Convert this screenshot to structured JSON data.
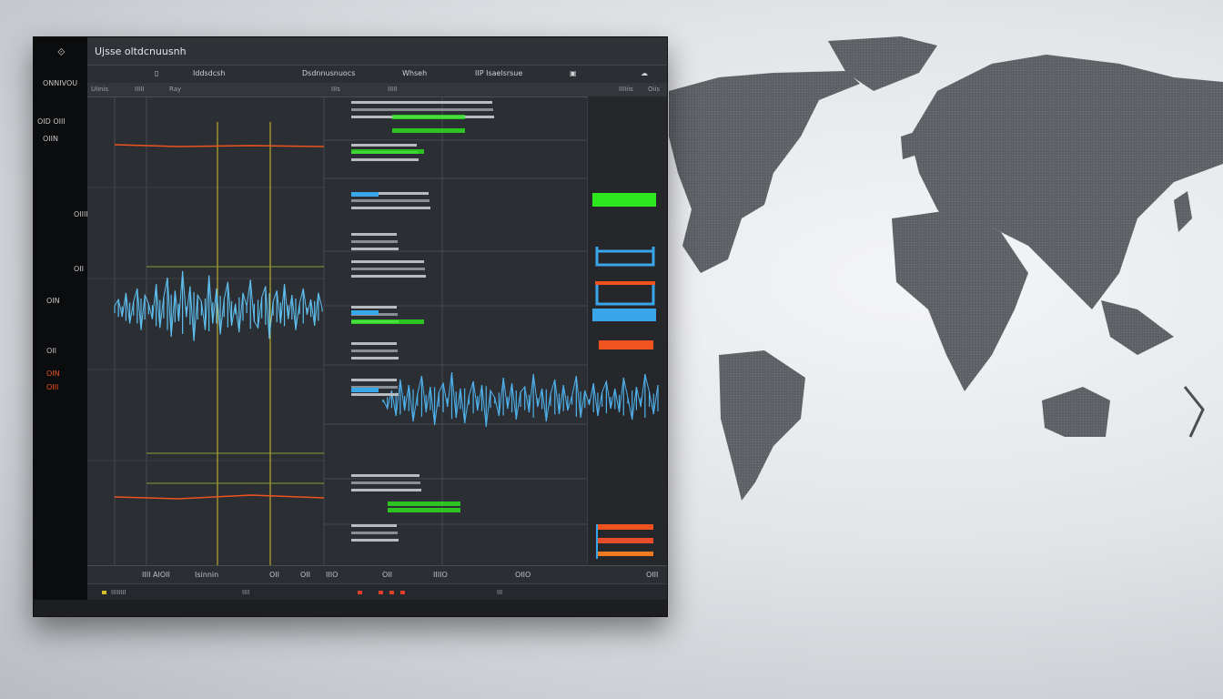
{
  "window": {
    "title": "Ujsse oltdcnuusnh"
  },
  "sidebar": {
    "items": [
      "OID  OIII",
      "ONNIVOU",
      "OU  OIIN",
      "OIIN",
      "OIIII",
      "OII",
      "OIN",
      "OII",
      "OIN",
      "OIII"
    ]
  },
  "toolbar": {
    "items": [
      "Iddsdcsh",
      "Dsdnnusnuocs",
      "Whseh",
      "IIP Isaelsrsue"
    ]
  },
  "subheader": {
    "items": [
      "Uiinis",
      "IIIII",
      "Ray",
      "IIIs",
      "IIIII",
      "IIIIiis",
      "Oiis"
    ]
  },
  "bottom_bar": {
    "items": [
      "IIII  AIOII",
      "Isinnin",
      "OII",
      "OII",
      "IIIO",
      "OII",
      "IIIIO",
      "OIIO",
      "OIII"
    ]
  },
  "status_bar": {
    "items": [
      "IIIIIIII",
      "IIII",
      "III"
    ]
  },
  "colors": {
    "accent_blue": "#3aa6ea",
    "green": "#2ee81f",
    "orange": "#f0531f",
    "yellow": "#d6c12c",
    "panel": "#2b2e33"
  },
  "chart_data": [
    {
      "type": "line",
      "title": "",
      "series": [
        {
          "color": "#5fc0f0",
          "values": [
            2,
            5,
            -3,
            8,
            -6,
            4,
            10,
            -9,
            7,
            3,
            -4,
            12,
            -8,
            6,
            15,
            -12,
            9,
            -5,
            18,
            -3,
            11,
            -14,
            7,
            4,
            -9,
            16,
            -6,
            10,
            -11,
            5,
            13,
            -7,
            3,
            -10,
            8,
            2,
            14,
            -5,
            -8,
            6,
            11,
            -13,
            4,
            9,
            -6,
            12,
            -4,
            7,
            -9,
            3,
            10,
            -2,
            5,
            -7,
            8,
            1
          ]
        }
      ]
    },
    {
      "type": "line",
      "title": "",
      "series": [
        {
          "color": "#4fb2ec",
          "values": [
            1,
            -4,
            6,
            -8,
            12,
            -5,
            9,
            -11,
            4,
            14,
            -6,
            8,
            -13,
            5,
            10,
            -3,
            16,
            -9,
            7,
            -12,
            3,
            11,
            -5,
            9,
            -14,
            6,
            2,
            -8,
            13,
            -4,
            10,
            -10,
            5,
            8,
            -6,
            15,
            -3,
            7,
            -11,
            4,
            12,
            -7,
            9,
            -5,
            3,
            14,
            -9,
            6,
            -2,
            10,
            -8,
            5,
            11,
            -4,
            7,
            -6,
            13,
            2,
            -10,
            8,
            -3,
            15,
            5,
            -7,
            9
          ]
        }
      ]
    }
  ]
}
